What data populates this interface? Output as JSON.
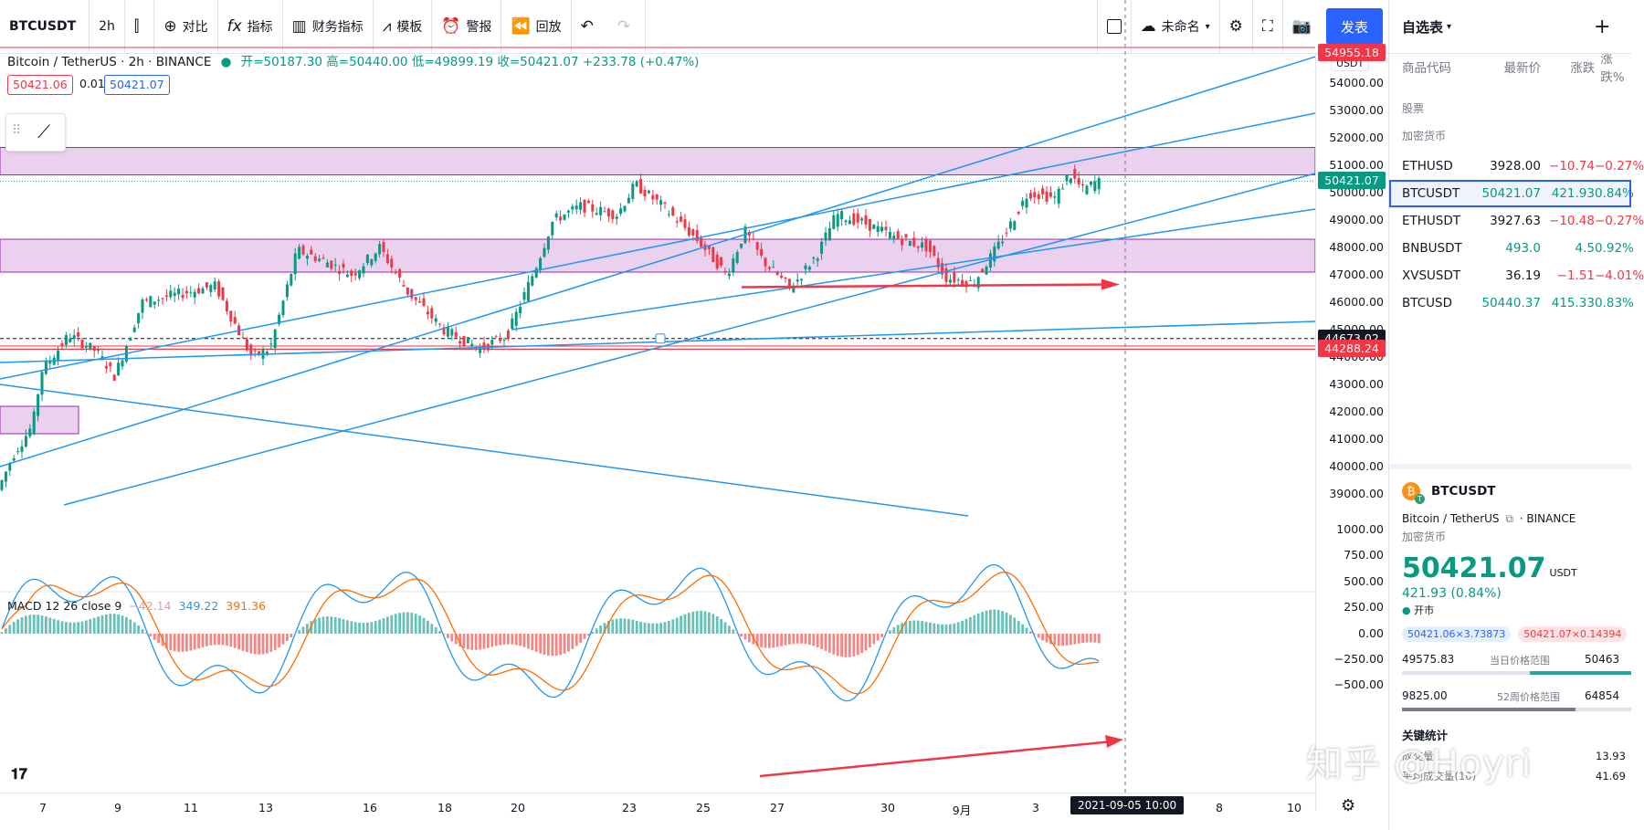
{
  "toolbar": {
    "symbol": "BTCUSDT",
    "interval": "2h",
    "compare": "对比",
    "indicators": "指标",
    "financials": "财务指标",
    "templates": "模板",
    "alerts": "警报",
    "replay": "回放",
    "layout_name": "未命名",
    "publish": "发表"
  },
  "legend": {
    "title": "Bitcoin / TetherUS · 2h · BINANCE",
    "open": "开=50187.30",
    "high": "高=50440.00",
    "low": "低=49899.19",
    "close": "收=50421.07",
    "change": "+233.78 (+0.47%)",
    "bid": "50421.06",
    "spread": "0.01",
    "ask": "50421.07"
  },
  "macd": {
    "title": "MACD 12 26 close 9",
    "hist": "−42.14",
    "macd": "349.22",
    "signal": "391.36"
  },
  "price_axis": {
    "currency": "USDT",
    "labels": [
      "54000.00",
      "53000.00",
      "52000.00",
      "51000.00",
      "50000.00",
      "49000.00",
      "48000.00",
      "47000.00",
      "46000.00",
      "45000.00",
      "44000.00",
      "43000.00",
      "42000.00",
      "41000.00",
      "40000.00",
      "39000.00"
    ],
    "last_price": "50421.07",
    "crosshair_price": "44673.02",
    "line_price": "44288.24",
    "top_price": "54955.18",
    "macd_labels": [
      "1000.00",
      "750.00",
      "500.00",
      "250.00",
      "0.00",
      "−250.00",
      "−500.00"
    ]
  },
  "time_axis": {
    "labels": [
      "7",
      "9",
      "11",
      "13",
      "16",
      "18",
      "20",
      "23",
      "25",
      "27",
      "30",
      "9月",
      "3",
      "8",
      "10"
    ],
    "crosshair_time": "2021-09-05  10:00"
  },
  "watchlist": {
    "title": "自选表",
    "columns": [
      "商品代码",
      "最新价",
      "涨跌",
      "涨跌%"
    ],
    "section_stocks": "股票",
    "section_crypto": "加密货币",
    "rows": [
      {
        "symbol": "ETHUSD",
        "last": "3928.00",
        "change": "−10.74",
        "pct": "−0.27%",
        "dir": "down"
      },
      {
        "symbol": "BTCUSDT",
        "last": "50421.07",
        "change": "421.93",
        "pct": "0.84%",
        "dir": "up"
      },
      {
        "symbol": "ETHUSDT",
        "last": "3927.63",
        "change": "−10.48",
        "pct": "−0.27%",
        "dir": "down"
      },
      {
        "symbol": "BNBUSDT",
        "last": "493.0",
        "change": "4.5",
        "pct": "0.92%",
        "dir": "up"
      },
      {
        "symbol": "XVSUSDT",
        "last": "36.19",
        "change": "−1.51",
        "pct": "−4.01%",
        "dir": "down"
      },
      {
        "symbol": "BTCUSD",
        "last": "50440.37",
        "change": "415.33",
        "pct": "0.83%",
        "dir": "up"
      }
    ]
  },
  "detail": {
    "symbol": "BTCUSDT",
    "name": "Bitcoin / TetherUS",
    "exchange": "· BINANCE",
    "category": "加密货币",
    "price": "50421.07",
    "currency": "USDT",
    "change": "421.93 (0.84%)",
    "status": "开市",
    "bid": "50421.06×3.73873",
    "ask": "50421.07×0.14394",
    "day_low": "49575.83",
    "day_range_label": "当日价格范围",
    "day_high": "50463",
    "week_low": "9825.00",
    "week_range_label": "52周价格范围",
    "week_high": "64854",
    "key_stats": "关键统计",
    "volume_label": "成交量",
    "volume": "13.93",
    "avg_volume_label": "平均成交量(10)",
    "avg_volume": "41.69"
  },
  "watermark": "知乎 @Hoyri",
  "colors": {
    "up": "#089981",
    "down": "#f23645",
    "accent": "#2962ff",
    "zone": "#e1bee7",
    "trend": "#2196f3"
  }
}
